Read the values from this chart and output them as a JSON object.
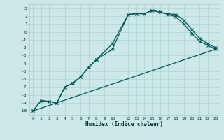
{
  "title": "",
  "xlabel": "Humidex (Indice chaleur)",
  "bg_color": "#cce8e8",
  "grid_color": "#aacccc",
  "line_color": "#005555",
  "xlim": [
    -0.5,
    23.5
  ],
  "ylim": [
    -10.5,
    3.5
  ],
  "xticks": [
    0,
    1,
    2,
    3,
    4,
    5,
    6,
    7,
    8,
    9,
    10,
    12,
    13,
    14,
    15,
    16,
    17,
    18,
    19,
    20,
    21,
    22,
    23
  ],
  "yticks": [
    3,
    2,
    1,
    0,
    -1,
    -2,
    -3,
    -4,
    -5,
    -6,
    -7,
    -8,
    -9,
    -10
  ],
  "line1_x": [
    0,
    1,
    2,
    3,
    4,
    5,
    6,
    7,
    8,
    10,
    12,
    13,
    14,
    15,
    16,
    17,
    18,
    19,
    20,
    21,
    22,
    23
  ],
  "line1_y": [
    -10,
    -8.7,
    -8.8,
    -9.0,
    -7.0,
    -6.5,
    -5.7,
    -4.5,
    -3.5,
    -2.2,
    2.2,
    2.3,
    2.3,
    2.7,
    2.5,
    2.3,
    2.2,
    1.5,
    0.3,
    -0.8,
    -1.5,
    -2.0
  ],
  "line2_x": [
    0,
    1,
    2,
    3,
    4,
    5,
    6,
    7,
    8,
    10,
    12,
    13,
    14,
    15,
    16,
    17,
    18,
    19,
    20,
    21,
    22,
    23
  ],
  "line2_y": [
    -10,
    -8.7,
    -8.8,
    -9.0,
    -7.0,
    -6.5,
    -5.7,
    -4.5,
    -3.5,
    -1.5,
    2.2,
    2.3,
    2.3,
    2.7,
    2.5,
    2.2,
    1.9,
    1.0,
    -0.2,
    -1.2,
    -1.7,
    -2.2
  ],
  "line3_x": [
    0,
    23
  ],
  "line3_y": [
    -10,
    -2.2
  ]
}
